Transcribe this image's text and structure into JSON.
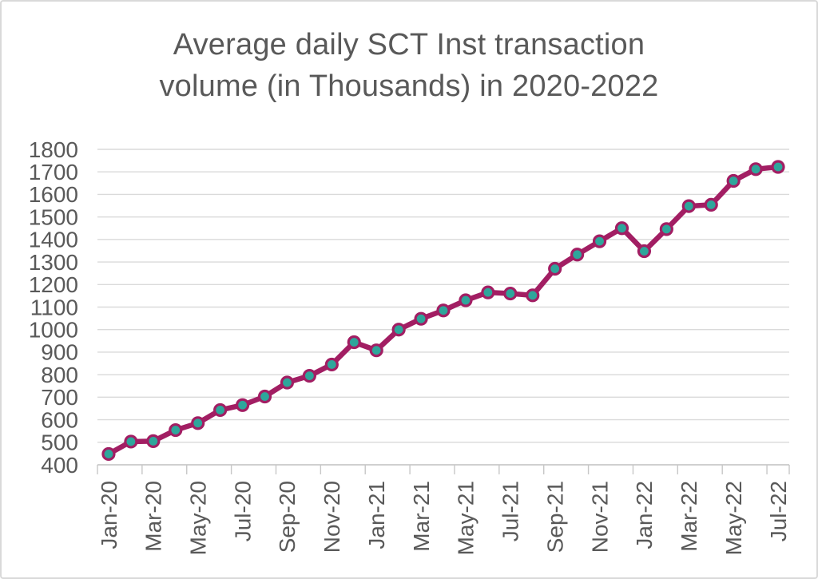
{
  "chart_data": {
    "type": "line",
    "title": "Average daily SCT Inst transaction volume (in Thousands) in 2020-2022",
    "title_lines": [
      "Average daily SCT Inst transaction",
      "volume (in Thousands) in 2020-2022"
    ],
    "categories": [
      "Jan-20",
      "Feb-20",
      "Mar-20",
      "Apr-20",
      "May-20",
      "Jun-20",
      "Jul-20",
      "Aug-20",
      "Sep-20",
      "Oct-20",
      "Nov-20",
      "Dec-20",
      "Jan-21",
      "Feb-21",
      "Mar-21",
      "Apr-21",
      "May-21",
      "Jun-21",
      "Jul-21",
      "Aug-21",
      "Sep-21",
      "Oct-21",
      "Nov-21",
      "Dec-21",
      "Jan-22",
      "Feb-22",
      "Mar-22",
      "Apr-22",
      "May-22",
      "Jun-22",
      "Jul-22"
    ],
    "series": [
      {
        "name": "Average daily SCT Inst transaction volume (thousands)",
        "values": [
          448,
          503,
          505,
          554,
          585,
          643,
          665,
          703,
          765,
          795,
          845,
          944,
          908,
          1000,
          1048,
          1085,
          1130,
          1165,
          1160,
          1152,
          1270,
          1333,
          1392,
          1450,
          1348,
          1446,
          1548,
          1554,
          1660,
          1712,
          1722
        ]
      }
    ],
    "xlabel": "",
    "ylabel": "",
    "ylim": [
      400,
      1800
    ],
    "ytick_step": 100,
    "ytick_labels": [
      "400",
      "500",
      "600",
      "700",
      "800",
      "900",
      "1000",
      "1100",
      "1200",
      "1300",
      "1400",
      "1500",
      "1600",
      "1700",
      "1800"
    ],
    "xtick_every": 2,
    "xtick_labels": [
      "Jan-20",
      "Mar-20",
      "May-20",
      "Jul-20",
      "Sep-20",
      "Nov-20",
      "Jan-21",
      "Mar-21",
      "May-21",
      "Jul-21",
      "Sep-21",
      "Nov-21",
      "Jan-22",
      "Mar-22",
      "May-22",
      "Jul-22"
    ],
    "grid": "horizontal",
    "legend_position": "none",
    "colors": {
      "line": "#A21E63",
      "marker_fill": "#2EA69B",
      "marker_stroke": "#A21E63",
      "gridline": "#DADADA",
      "axis": "#C7C7C7",
      "text": "#595959",
      "background": "#FFFFFF",
      "border": "#D9D9D9"
    }
  }
}
